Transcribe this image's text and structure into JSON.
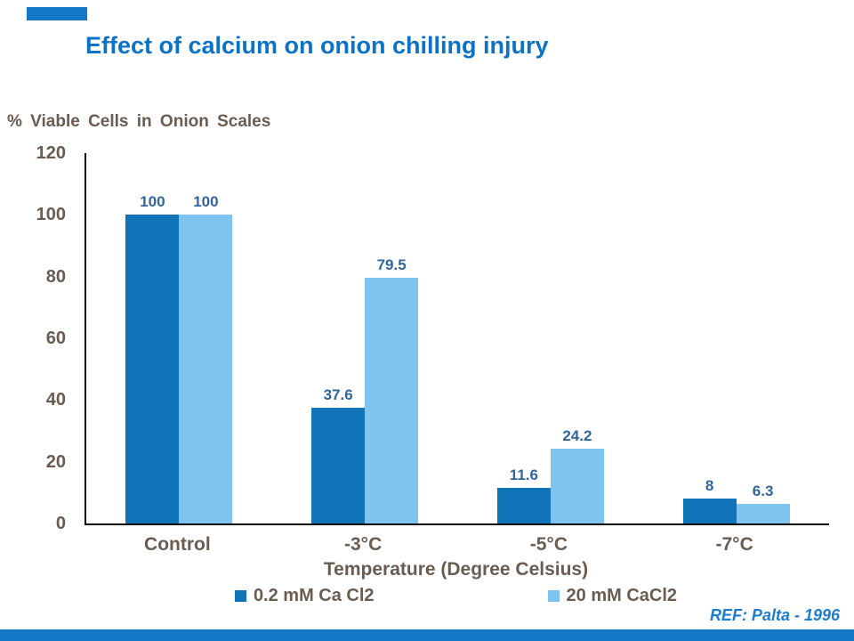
{
  "slide": {
    "title": "Effect of calcium on onion chilling injury",
    "ref": "REF: Palta - 1996",
    "accent_color": "#1577c8"
  },
  "chart_data": {
    "type": "bar",
    "title": "Effect of calcium on onion chilling injury",
    "ylabel": "% Viable Cells in Onion Scales",
    "xlabel": "Temperature (Degree Celsius)",
    "categories": [
      "Control",
      "-3°C",
      "-5°C",
      "-7°C"
    ],
    "series": [
      {
        "name": "0.2 mM Ca Cl2",
        "color": "#1173b8",
        "values": [
          100,
          37.6,
          11.6,
          8
        ]
      },
      {
        "name": "20 mM CaCl2",
        "color": "#7fc3f0",
        "values": [
          100,
          79.5,
          24.2,
          6.3
        ]
      }
    ],
    "ylim": [
      0,
      120
    ],
    "yticks": [
      0,
      20,
      40,
      60,
      80,
      100,
      120
    ],
    "grid": false,
    "legend_position": "bottom"
  }
}
